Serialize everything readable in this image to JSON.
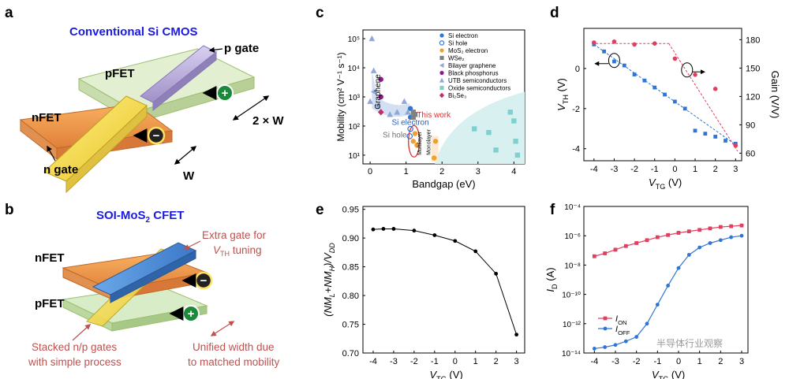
{
  "panels": {
    "a": "a",
    "b": "b",
    "c": "c",
    "d": "d",
    "e": "e",
    "f": "f"
  },
  "a": {
    "title": "Conventional Si CMOS",
    "p_gate": "p gate",
    "pfet": "pFET",
    "nfet": "nFET",
    "n_gate": "n gate",
    "width_2w": "2 × W",
    "width_w": "W",
    "plus": "+",
    "minus": "−"
  },
  "b": {
    "title_pre": "SOI-MoS",
    "title_sub": "2",
    "title_post": " CFET",
    "nfet": "nFET",
    "pfet": "pFET",
    "extra_gate_1": "Extra gate for",
    "extra_gate_2_pre": "V",
    "extra_gate_2_sub": "TH",
    "extra_gate_2_post": " tuning",
    "stacked_1": "Stacked n/p gates",
    "stacked_2": "with simple process",
    "unified_1": "Unified width due",
    "unified_2": "to matched mobility",
    "plus": "+",
    "minus": "−"
  },
  "chart_data": [
    {
      "panel": "c",
      "type": "scatter",
      "xlabel": "Bandgap (eV)",
      "ylabel": "Mobility (cm² V⁻¹ s⁻¹)",
      "xlim": [
        -0.2,
        4.3
      ],
      "ylim_log10": [
        0.7,
        5.3
      ],
      "y_log": true,
      "xticks": [
        "0",
        "1",
        "2",
        "3",
        "4"
      ],
      "yticks": [
        "10¹",
        "10²",
        "10³",
        "10⁴",
        "10⁵"
      ],
      "annotations": {
        "graphene": "Graphene",
        "si_electron": "Si electron",
        "si_hole": "Si hole",
        "this_work": "This work",
        "multilayer": "Multilayer",
        "monolayer": "Monolayer"
      },
      "legend": [
        "Si electron",
        "Si hole",
        "MoS₂ electron",
        "WSe₂",
        "Bilayer graphene",
        "Black phosphorus",
        "UTB semiconductors",
        "Oxide semiconductors",
        "Bi₂Se₃"
      ],
      "colors": {
        "si_e": "#2e75d6",
        "si_h": "#2e75d6",
        "mos2": "#f0a030",
        "wse2": "#808080",
        "bil": "#8fa8d8",
        "bp": "#8b1a8b",
        "utb": "#8fa8d8",
        "oxide": "#7fd0d0",
        "bise": "#c0306a",
        "shade": "#d8f0f0"
      },
      "series": [
        {
          "name": "Si electron",
          "marker": "dot",
          "x": [
            1.12,
            1.12
          ],
          "y": [
            200,
            400
          ]
        },
        {
          "name": "Si hole",
          "marker": "ring",
          "x": [
            1.12,
            1.1
          ],
          "y": [
            80,
            45
          ]
        },
        {
          "name": "MoS₂ electron",
          "marker": "dot",
          "x": [
            1.2,
            1.25,
            1.3,
            1.78,
            1.82
          ],
          "y": [
            30,
            55,
            22,
            8,
            30
          ]
        },
        {
          "name": "WSe₂",
          "marker": "square",
          "x": [
            1.2,
            1.25,
            1.2
          ],
          "y": [
            300,
            250,
            200
          ]
        },
        {
          "name": "Bilayer graphene",
          "marker": "tri-left",
          "x": [
            0.1,
            0.2
          ],
          "y": [
            1500,
            500
          ]
        },
        {
          "name": "Black phosphorus",
          "marker": "dot",
          "x": [
            0.3,
            0.3
          ],
          "y": [
            4000,
            1000
          ]
        },
        {
          "name": "UTB semiconductors",
          "marker": "triangle",
          "x": [
            0.05,
            0.1,
            0.0,
            0.55,
            0.75,
            0.95,
            1.05
          ],
          "y": [
            100000,
            8000,
            700,
            250,
            300,
            700,
            300
          ]
        },
        {
          "name": "Oxide semiconductors",
          "marker": "square",
          "x": [
            2.9,
            3.3,
            3.5,
            3.9,
            4.0,
            4.05,
            4.1
          ],
          "y": [
            80,
            60,
            15,
            300,
            150,
            30,
            10
          ]
        },
        {
          "name": "Bi₂Se₃",
          "marker": "diamond",
          "x": [
            0.3
          ],
          "y": [
            300
          ]
        }
      ]
    },
    {
      "panel": "d",
      "type": "scatter",
      "xlabel_pre": "V",
      "xlabel_sub": "TG",
      "xlabel_post": " (V)",
      "ylabel_pre": "V",
      "ylabel_sub": "TH",
      "ylabel_post": " (V)",
      "y2label": "Gain (V/V)",
      "xlim": [
        -4.5,
        3.3
      ],
      "ylim": [
        -4.6,
        2.0
      ],
      "y2lim": [
        52,
        192
      ],
      "xticks": [
        -4,
        -3,
        -2,
        -1,
        0,
        1,
        2,
        3
      ],
      "yticks": [
        -4,
        -2,
        0
      ],
      "y2ticks": [
        60,
        90,
        120,
        150,
        180
      ],
      "vth_color": "#2e75d6",
      "gain_color": "#e04060",
      "vth": {
        "x": [
          -4,
          -3.5,
          -3,
          -2.5,
          -2,
          -1.5,
          -1,
          -0.5,
          0,
          0.5,
          1,
          1.5,
          2,
          2.5,
          3
        ],
        "y": [
          1.2,
          0.85,
          0.35,
          0.15,
          -0.3,
          -0.6,
          -0.95,
          -1.3,
          -1.65,
          -2.0,
          -3.1,
          -3.25,
          -3.4,
          -3.6,
          -3.75
        ]
      },
      "gain": {
        "x": [
          -4,
          -3,
          -2,
          -1,
          0,
          1,
          2,
          3
        ],
        "y": [
          177,
          178,
          175,
          176,
          160,
          143,
          128,
          68
        ]
      },
      "vth_fit": [
        [
          -4,
          1.2
        ],
        [
          3,
          -3.8
        ]
      ],
      "gain_fit_flat": [
        [
          -4.1,
          176
        ],
        [
          -0.3,
          176
        ]
      ],
      "gain_fit_slope": [
        [
          -0.3,
          176
        ],
        [
          3.1,
          62
        ]
      ]
    },
    {
      "panel": "e",
      "type": "line",
      "xlabel_pre": "V",
      "xlabel_sub": "TG",
      "xlabel_post": " (V)",
      "ylabel_a": "(NM",
      "ylabel_b": "L",
      "ylabel_c": "+NM",
      "ylabel_d": "H",
      "ylabel_e": ")/V",
      "ylabel_f": "DD",
      "xlim": [
        -4.5,
        3.4
      ],
      "ylim": [
        0.7,
        0.955
      ],
      "xticks": [
        -4,
        -3,
        -2,
        -1,
        0,
        1,
        2,
        3
      ],
      "yticks": [
        "0.70",
        "0.75",
        "0.80",
        "0.85",
        "0.90",
        "0.95"
      ],
      "x": [
        -4,
        -3.5,
        -3,
        -2,
        -1,
        0,
        1,
        2,
        3
      ],
      "y": [
        0.915,
        0.916,
        0.916,
        0.913,
        0.905,
        0.895,
        0.877,
        0.838,
        0.732
      ]
    },
    {
      "panel": "f",
      "type": "line",
      "xlabel_pre": "V",
      "xlabel_sub": "TG",
      "xlabel_post": " (V)",
      "ylabel_pre": "I",
      "ylabel_sub": "D",
      "ylabel_post": " (A)",
      "xlim": [
        -4.5,
        3.3
      ],
      "ylim_log10": [
        -14,
        -4
      ],
      "y_log": true,
      "xticks": [
        -4,
        -3,
        -2,
        -1,
        0,
        1,
        2,
        3
      ],
      "yticks": [
        "10⁻¹⁴",
        "10⁻¹²",
        "10⁻¹⁰",
        "10⁻⁸",
        "10⁻⁶",
        "10⁻⁴"
      ],
      "series": [
        {
          "name_pre": "I",
          "name_sub": "ON",
          "color": "#e04060",
          "x": [
            -4,
            -3.5,
            -3,
            -2.5,
            -2,
            -1.5,
            -1,
            -0.5,
            0,
            0.5,
            1,
            1.5,
            2,
            2.5,
            3
          ],
          "log10y": [
            -7.4,
            -7.2,
            -6.95,
            -6.7,
            -6.5,
            -6.3,
            -6.1,
            -5.95,
            -5.8,
            -5.7,
            -5.6,
            -5.5,
            -5.4,
            -5.35,
            -5.3
          ]
        },
        {
          "name_pre": "I",
          "name_sub": "OFF",
          "color": "#2e75d6",
          "x": [
            -4,
            -3.5,
            -3,
            -2.5,
            -2,
            -1.5,
            -1,
            -0.5,
            0,
            0.5,
            1,
            1.5,
            2,
            2.5,
            3
          ],
          "log10y": [
            -13.7,
            -13.6,
            -13.45,
            -13.2,
            -12.9,
            -12.0,
            -10.7,
            -9.4,
            -8.2,
            -7.3,
            -6.8,
            -6.5,
            -6.3,
            -6.1,
            -6.0
          ]
        }
      ]
    }
  ],
  "watermark": "半导体行业观察"
}
